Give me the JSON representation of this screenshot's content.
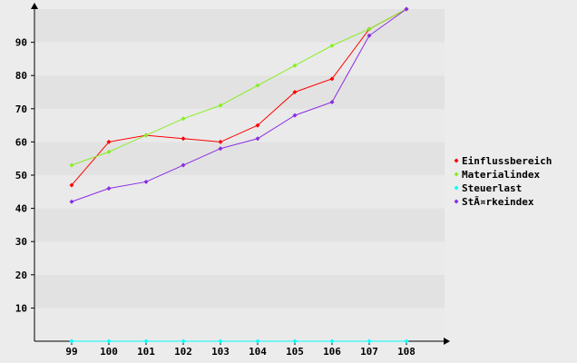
{
  "colors": {
    "background": "#ececec",
    "plot_band_dark": "#e2e2e2",
    "plot_band_light": "#eaeaea",
    "axis": "#000000"
  },
  "chart_data": {
    "type": "line",
    "title": "",
    "xlabel": "",
    "ylabel": "",
    "categories": [
      "99",
      "100",
      "101",
      "102",
      "103",
      "104",
      "105",
      "106",
      "107",
      "108"
    ],
    "ylim": [
      0,
      100
    ],
    "yticks": [
      10,
      20,
      30,
      40,
      50,
      60,
      70,
      80,
      90
    ],
    "grid": "horizontal alternating bands",
    "legend_position": "right",
    "series": [
      {
        "name": "Einflussbereich",
        "color": "#ff0000",
        "values": [
          47,
          60,
          62,
          61,
          60,
          65,
          75,
          79,
          94,
          100
        ]
      },
      {
        "name": "Materialindex",
        "color": "#88ee22",
        "values": [
          53,
          57,
          62,
          67,
          71,
          77,
          83,
          89,
          94,
          100
        ]
      },
      {
        "name": "Steuerlast",
        "color": "#00ffff",
        "values": [
          0,
          0,
          0,
          0,
          0,
          0,
          0,
          0,
          0,
          0
        ]
      },
      {
        "name": "Stärkeindex",
        "display_name": "StÃ¤rkeindex",
        "color": "#8a2be2",
        "values": [
          42,
          46,
          48,
          53,
          58,
          61,
          68,
          72,
          92,
          100
        ]
      }
    ]
  }
}
